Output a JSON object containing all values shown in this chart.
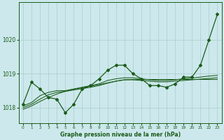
{
  "title": "Graphe pression niveau de la mer (hPa)",
  "background_color": "#cce8ec",
  "grid_color": "#aacccc",
  "line_color": "#1a5c1a",
  "xlim": [
    -0.5,
    23.5
  ],
  "ylim": [
    1017.55,
    1021.1
  ],
  "yticks": [
    1018,
    1019,
    1020
  ],
  "xticks": [
    0,
    1,
    2,
    3,
    4,
    5,
    6,
    7,
    8,
    9,
    10,
    11,
    12,
    13,
    14,
    15,
    16,
    17,
    18,
    19,
    20,
    21,
    22,
    23
  ],
  "main_series": [
    1018.1,
    1018.75,
    1018.55,
    1018.3,
    1018.25,
    1017.85,
    1018.1,
    1018.55,
    1018.65,
    1018.85,
    1019.1,
    1019.25,
    1019.25,
    1019.0,
    1018.85,
    1018.65,
    1018.65,
    1018.6,
    1018.7,
    1018.9,
    1018.9,
    1019.25,
    1020.0,
    1020.75
  ],
  "smooth1": [
    1018.05,
    1018.15,
    1018.35,
    1018.45,
    1018.5,
    1018.5,
    1018.55,
    1018.6,
    1018.65,
    1018.7,
    1018.8,
    1018.85,
    1018.88,
    1018.88,
    1018.85,
    1018.82,
    1018.8,
    1018.8,
    1018.82,
    1018.85,
    1018.87,
    1018.9,
    1018.93,
    1018.95
  ],
  "smooth2": [
    1018.0,
    1018.1,
    1018.25,
    1018.38,
    1018.45,
    1018.48,
    1018.52,
    1018.56,
    1018.6,
    1018.65,
    1018.72,
    1018.78,
    1018.82,
    1018.82,
    1018.8,
    1018.78,
    1018.76,
    1018.76,
    1018.78,
    1018.8,
    1018.82,
    1018.84,
    1018.86,
    1018.88
  ],
  "trend": [
    1017.95,
    1018.05,
    1018.18,
    1018.3,
    1018.4,
    1018.48,
    1018.54,
    1018.59,
    1018.63,
    1018.68,
    1018.73,
    1018.78,
    1018.82,
    1018.83,
    1018.83,
    1018.83,
    1018.83,
    1018.83,
    1018.83,
    1018.83,
    1018.83,
    1018.83,
    1018.83,
    1018.83
  ]
}
